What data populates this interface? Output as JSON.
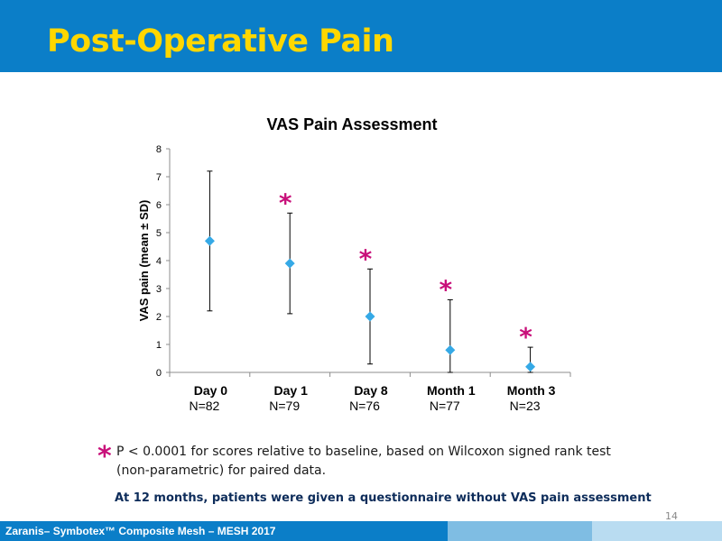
{
  "slide": {
    "title": "Post-Operative Pain",
    "page_number": "14",
    "footer": "Zaranis– Symbotex™ Composite Mesh – MESH 2017"
  },
  "notes": {
    "significance_symbol": "*",
    "significance_text": "P < 0.0001 for scores relative to baseline, based on Wilcoxon signed rank test (non-parametric) for paired data.",
    "followup_text": "At 12 months, patients were given a questionnaire without VAS pain assessment"
  },
  "chart_data": {
    "type": "scatter",
    "title": "VAS Pain Assessment",
    "ylabel": "VAS pain (mean ± SD)",
    "xlabel": "",
    "ylim": [
      0,
      8
    ],
    "yticks": [
      "0",
      "1",
      "2",
      "3",
      "4",
      "5",
      "6",
      "7",
      "8"
    ],
    "grid": false,
    "legend": "none",
    "marker": "diamond",
    "marker_color": "#35a9e6",
    "significance_color": "#c8107a",
    "categories": [
      "Day 0",
      "Day 1",
      "Day 8",
      "Month 1",
      "Month 3"
    ],
    "n_labels": [
      "N=82",
      "N=79",
      "N=76",
      "N=77",
      "N=23"
    ],
    "values": [
      4.7,
      3.9,
      2.0,
      0.8,
      0.2
    ],
    "error_high": [
      7.2,
      5.7,
      3.7,
      2.6,
      0.9
    ],
    "error_low": [
      2.2,
      2.1,
      0.3,
      0.0,
      0.0
    ],
    "significant": [
      false,
      true,
      true,
      true,
      true
    ],
    "significance_marker": "*"
  }
}
